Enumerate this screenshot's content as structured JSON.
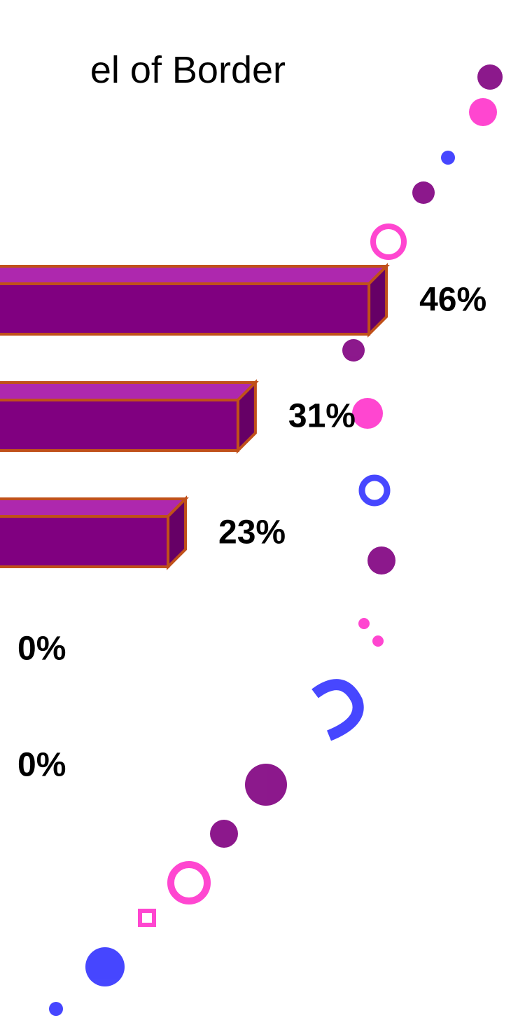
{
  "chart_data": {
    "type": "bar",
    "orientation": "horizontal",
    "title": "el of Border",
    "categories": [
      null,
      null,
      null,
      null,
      null
    ],
    "values": [
      46,
      31,
      23,
      0,
      0
    ],
    "value_labels": [
      "46%",
      "31%",
      "23%",
      "0%",
      "0%"
    ],
    "color": "#800080"
  }
}
